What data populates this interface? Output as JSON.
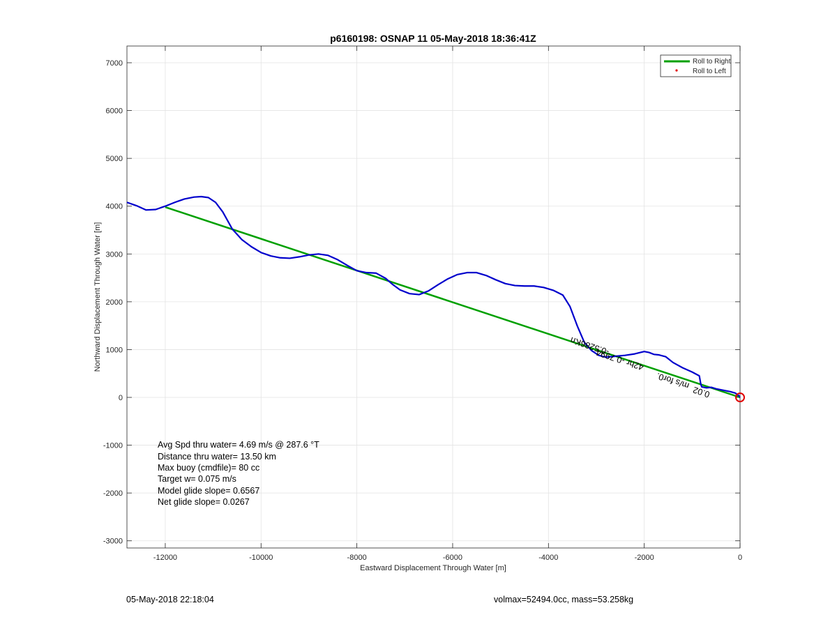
{
  "chart_data": {
    "type": "line",
    "title": "p6160198: OSNAP 11 05-May-2018 18:36:41Z",
    "xlabel": "Eastward Displacement Through Water [m]",
    "ylabel": "Northward Displacement Through Water [m]",
    "xlim": [
      -12800,
      0
    ],
    "ylim": [
      -3150,
      7350
    ],
    "xticks": [
      -12000,
      -10000,
      -8000,
      -6000,
      -4000,
      -2000,
      0
    ],
    "yticks": [
      -3000,
      -2000,
      -1000,
      0,
      1000,
      2000,
      3000,
      4000,
      5000,
      6000,
      7000
    ],
    "grid": true,
    "legend": {
      "location": "top-right",
      "entries": [
        {
          "label": "Roll to Right",
          "color": "#00a000",
          "marker": "line"
        },
        {
          "label": "Roll to Left",
          "color": "#e00000",
          "marker": "dot"
        }
      ]
    },
    "series": [
      {
        "name": "Roll to Right",
        "color": "#00a000",
        "x": [
          -12000,
          0
        ],
        "y": [
          3980,
          0
        ]
      },
      {
        "color": "#0000cc",
        "x": [
          -12800,
          -12600,
          -12400,
          -12200,
          -12000,
          -11800,
          -11600,
          -11400,
          -11250,
          -11100,
          -10950,
          -10800,
          -10600,
          -10400,
          -10200,
          -10000,
          -9800,
          -9600,
          -9400,
          -9200,
          -9000,
          -8800,
          -8600,
          -8400,
          -8200,
          -8000,
          -7800,
          -7600,
          -7400,
          -7250,
          -7100,
          -6900,
          -6700,
          -6500,
          -6300,
          -6100,
          -5900,
          -5700,
          -5500,
          -5300,
          -5100,
          -4900,
          -4700,
          -4500,
          -4300,
          -4100,
          -3900,
          -3700,
          -3550,
          -3400,
          -3250,
          -3100,
          -2950,
          -2800,
          -2600,
          -2400,
          -2200,
          -2000,
          -1900,
          -1800,
          -1700,
          -1550,
          -1400,
          -1200,
          -1000,
          -850,
          -820,
          -800,
          -700,
          -600,
          -500,
          -400,
          -300,
          -200,
          -100,
          -30,
          0
        ],
        "y": [
          4080,
          4010,
          3920,
          3930,
          4000,
          4080,
          4150,
          4190,
          4200,
          4180,
          4080,
          3880,
          3520,
          3300,
          3150,
          3030,
          2960,
          2920,
          2910,
          2940,
          2980,
          3000,
          2970,
          2880,
          2760,
          2650,
          2610,
          2600,
          2490,
          2360,
          2250,
          2170,
          2150,
          2230,
          2360,
          2480,
          2570,
          2610,
          2610,
          2550,
          2460,
          2380,
          2340,
          2330,
          2330,
          2300,
          2240,
          2140,
          1900,
          1500,
          1150,
          980,
          880,
          840,
          860,
          880,
          910,
          960,
          940,
          900,
          890,
          850,
          730,
          620,
          530,
          450,
          280,
          220,
          200,
          210,
          180,
          160,
          140,
          120,
          90,
          40,
          0
        ]
      },
      {
        "name": "Roll to Left",
        "color": "#e00000",
        "x": [
          0
        ],
        "y": [
          0
        ]
      }
    ],
    "plot_labels": [
      {
        "text": "-0.5286Kn",
        "x": -2720,
        "y": 1000
      },
      {
        "text": "42hr -0.7994",
        "x": -2000,
        "y": 680
      },
      {
        "text": "m/s for0.",
        "x": -1050,
        "y": 290
      },
      {
        "text": "0.02",
        "x": -620,
        "y": 110
      }
    ],
    "annotations": [
      "Avg Spd thru water=  4.69 m/s @ 287.6 °T",
      "Distance thru water= 13.50 km",
      "Max buoy (cmdfile)= 80 cc",
      "Target w= 0.075 m/s",
      "Model glide slope= 0.6567",
      "Net glide slope= 0.0267"
    ]
  },
  "footer": {
    "timestamp": "05-May-2018 22:18:04",
    "info": "volmax=52494.0cc, mass=53.258kg"
  }
}
